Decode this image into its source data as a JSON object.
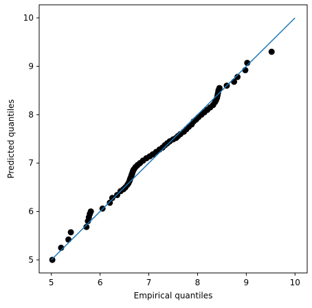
{
  "chart_data": {
    "type": "scatter",
    "title": "",
    "xlabel": "Empirical quantiles",
    "ylabel": "Predicted quantiles",
    "xlim": [
      4.75,
      10.25
    ],
    "ylim": [
      4.73,
      10.27
    ],
    "xticks": [
      5,
      6,
      7,
      8,
      9,
      10
    ],
    "yticks": [
      5,
      6,
      7,
      8,
      9,
      10
    ],
    "xtick_labels": [
      "5",
      "6",
      "7",
      "8",
      "9",
      "10"
    ],
    "ytick_labels": [
      "5",
      "6",
      "7",
      "8",
      "9",
      "10"
    ],
    "grid": false,
    "point_color": "#000000",
    "line_color": "#1f77b4",
    "reference_line": {
      "x": [
        5,
        10
      ],
      "y": [
        5,
        10
      ]
    },
    "series": [
      {
        "x": [
          5.02,
          5.2,
          5.35,
          5.4,
          5.72,
          5.75,
          5.77,
          5.79,
          5.81,
          6.05,
          6.2,
          6.25,
          6.35,
          6.42,
          6.48,
          6.52,
          6.56,
          6.58,
          6.6,
          6.61,
          6.62,
          6.63,
          6.64,
          6.65,
          6.66,
          6.67,
          6.68,
          6.7,
          6.73,
          6.77,
          6.82,
          6.88,
          6.95,
          7.02,
          7.08,
          7.15,
          7.22,
          7.28,
          7.33,
          7.38,
          7.43,
          7.5,
          7.56,
          7.6,
          7.65,
          7.72,
          7.77,
          7.82,
          7.88,
          7.92,
          7.97,
          8.02,
          8.08,
          8.14,
          8.2,
          8.26,
          8.32,
          8.36,
          8.38,
          8.4,
          8.41,
          8.42,
          8.43,
          8.44,
          8.45,
          8.6,
          8.75,
          8.82,
          8.98,
          9.02,
          9.52
        ],
        "y": [
          5.0,
          5.25,
          5.42,
          5.57,
          5.68,
          5.8,
          5.88,
          5.95,
          6.0,
          6.06,
          6.18,
          6.28,
          6.34,
          6.42,
          6.46,
          6.5,
          6.55,
          6.58,
          6.62,
          6.65,
          6.68,
          6.7,
          6.73,
          6.76,
          6.79,
          6.82,
          6.85,
          6.88,
          6.92,
          6.96,
          7.0,
          7.05,
          7.1,
          7.14,
          7.18,
          7.23,
          7.28,
          7.32,
          7.37,
          7.41,
          7.45,
          7.49,
          7.52,
          7.56,
          7.6,
          7.65,
          7.7,
          7.75,
          7.8,
          7.86,
          7.9,
          7.95,
          8.0,
          8.05,
          8.1,
          8.15,
          8.2,
          8.26,
          8.3,
          8.35,
          8.4,
          8.45,
          8.5,
          8.52,
          8.55,
          8.6,
          8.68,
          8.78,
          8.92,
          9.07,
          9.3
        ]
      }
    ]
  }
}
